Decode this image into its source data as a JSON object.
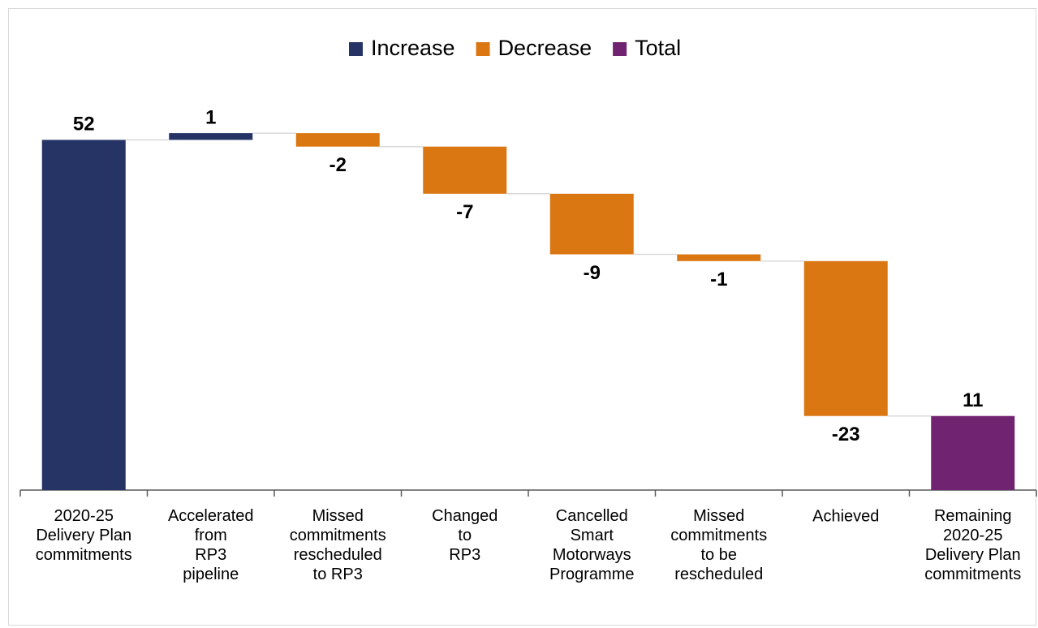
{
  "chart_data": {
    "type": "waterfall",
    "categories": [
      "2020-25\nDelivery Plan\ncommitments",
      "Accelerated\nfrom\nRP3\npipeline",
      "Missed\ncommitments\nrescheduled\nto RP3",
      "Changed\nto\nRP3",
      "Cancelled\nSmart\nMotorways\nProgramme",
      "Missed\ncommitments\nto be\nrescheduled",
      "Achieved",
      "Remaining\n2020-25\nDelivery Plan\ncommitments"
    ],
    "series": [
      {
        "name": "Increase",
        "color": "#253465",
        "values": [
          52,
          1,
          null,
          null,
          null,
          null,
          null,
          null
        ]
      },
      {
        "name": "Decrease",
        "color": "#db7713",
        "values": [
          null,
          null,
          -2,
          -7,
          -9,
          -1,
          -23,
          null
        ]
      },
      {
        "name": "Total",
        "color": "#6f2370",
        "values": [
          null,
          null,
          null,
          null,
          null,
          null,
          null,
          11
        ]
      }
    ],
    "ylim": [
      0,
      60
    ]
  }
}
